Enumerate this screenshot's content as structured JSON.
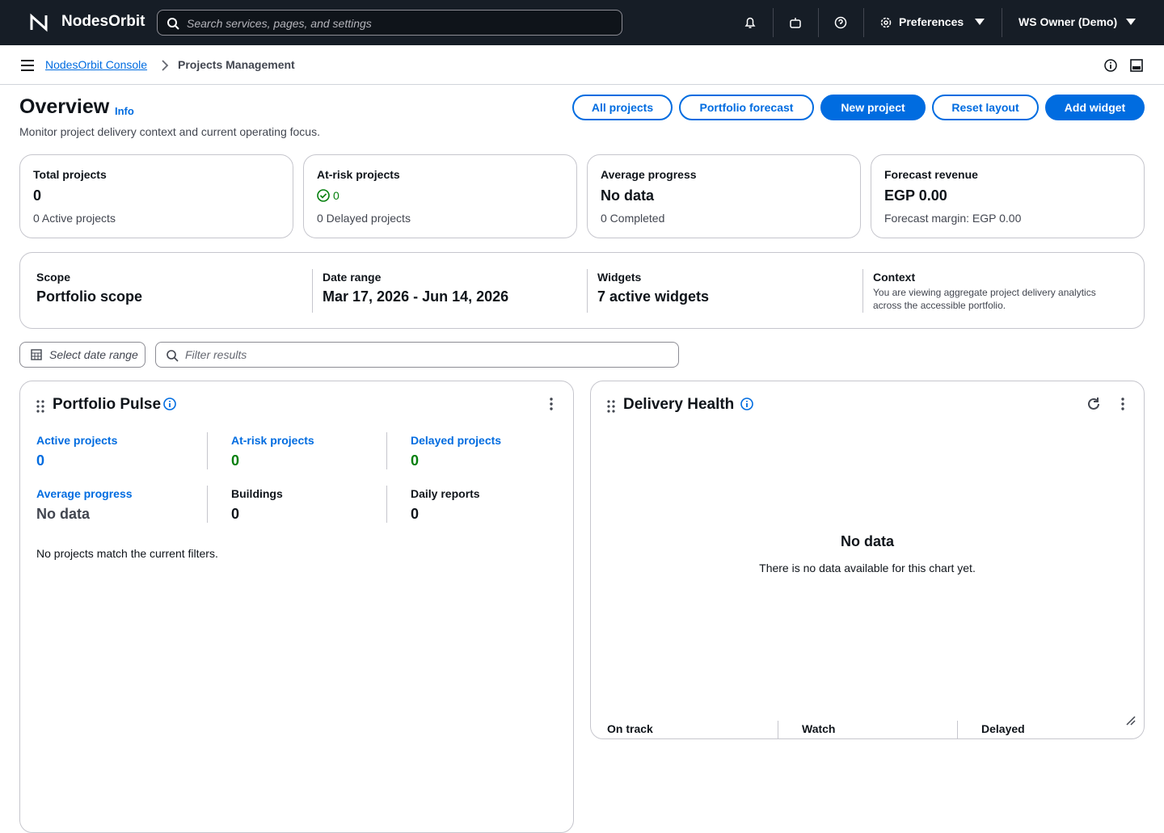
{
  "topbar": {
    "brand": "NodesOrbit",
    "search_placeholder": "Search services, pages, and settings",
    "preferences": "Preferences",
    "user": "WS Owner (Demo)"
  },
  "breadcrumb": {
    "items": [
      "NodesOrbit Console",
      "Projects Management"
    ]
  },
  "header": {
    "title": "Overview",
    "info": "Info",
    "description": "Monitor project delivery context and current operating focus.",
    "actions": [
      "All projects",
      "Portfolio forecast",
      "New project",
      "Reset layout",
      "Add widget"
    ]
  },
  "kpis": [
    {
      "label": "Total projects",
      "value": 0,
      "note": "0 Active projects"
    },
    {
      "label": "At-risk projects",
      "value": 0,
      "note": "0 Delayed projects"
    },
    {
      "label": "Average progress",
      "value": "No data",
      "note": "0 Completed"
    },
    {
      "label": "Forecast revenue",
      "value": "EGP 0.00",
      "note": "Forecast margin: EGP 0.00"
    }
  ],
  "context": [
    {
      "label": "Scope",
      "value": "Portfolio scope"
    },
    {
      "label": "Date range",
      "value": "Mar 17, 2026 - Jun 14, 2026"
    },
    {
      "label": "Widgets",
      "value": "7 active widgets"
    },
    {
      "label": "Context",
      "value": "You are viewing aggregate project delivery analytics across the accessible portfolio."
    }
  ],
  "filters": {
    "date_range": "Select date range",
    "filter_placeholder": "Filter results"
  },
  "portfolio_pulse": {
    "title": "Portfolio Pulse",
    "metrics": [
      {
        "label": "Active projects",
        "value": 0
      },
      {
        "label": "At-risk projects",
        "value": 0
      },
      {
        "label": "Delayed projects",
        "value": 0
      },
      {
        "label": "Average progress",
        "value": "No data"
      },
      {
        "label": "Buildings",
        "value": 0
      },
      {
        "label": "Daily reports",
        "value": 0
      }
    ],
    "empty": "No projects match the current filters."
  },
  "delivery_health": {
    "title": "Delivery Health",
    "empty_title": "No data",
    "empty_text": "There is no data available for this chart yet.",
    "columns": [
      "On track",
      "Watch",
      "Delayed"
    ]
  }
}
